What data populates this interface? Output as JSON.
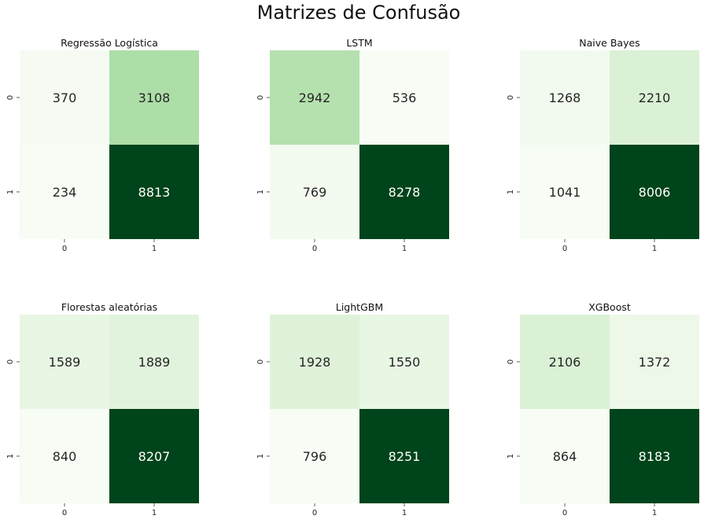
{
  "figure_title": "Matrizes de Confusão",
  "chart_data": [
    {
      "type": "heatmap",
      "title": "Regressão Logística",
      "x_categories": [
        "0",
        "1"
      ],
      "y_categories": [
        "0",
        "1"
      ],
      "values": [
        [
          370,
          3108
        ],
        [
          234,
          8813
        ]
      ],
      "colormap": "Greens",
      "annotations": true
    },
    {
      "type": "heatmap",
      "title": "LSTM",
      "x_categories": [
        "0",
        "1"
      ],
      "y_categories": [
        "0",
        "1"
      ],
      "values": [
        [
          2942,
          536
        ],
        [
          769,
          8278
        ]
      ],
      "colormap": "Greens",
      "annotations": true
    },
    {
      "type": "heatmap",
      "title": "Naive Bayes",
      "x_categories": [
        "0",
        "1"
      ],
      "y_categories": [
        "0",
        "1"
      ],
      "values": [
        [
          1268,
          2210
        ],
        [
          1041,
          8006
        ]
      ],
      "colormap": "Greens",
      "annotations": true
    },
    {
      "type": "heatmap",
      "title": "Florestas aleatórias",
      "x_categories": [
        "0",
        "1"
      ],
      "y_categories": [
        "0",
        "1"
      ],
      "values": [
        [
          1589,
          1889
        ],
        [
          840,
          8207
        ]
      ],
      "colormap": "Greens",
      "annotations": true
    },
    {
      "type": "heatmap",
      "title": "LightGBM",
      "x_categories": [
        "0",
        "1"
      ],
      "y_categories": [
        "0",
        "1"
      ],
      "values": [
        [
          1928,
          1550
        ],
        [
          796,
          8251
        ]
      ],
      "colormap": "Greens",
      "annotations": true
    },
    {
      "type": "heatmap",
      "title": "XGBoost",
      "x_categories": [
        "0",
        "1"
      ],
      "y_categories": [
        "0",
        "1"
      ],
      "values": [
        [
          2106,
          1372
        ],
        [
          864,
          8183
        ]
      ],
      "colormap": "Greens",
      "annotations": true
    }
  ]
}
